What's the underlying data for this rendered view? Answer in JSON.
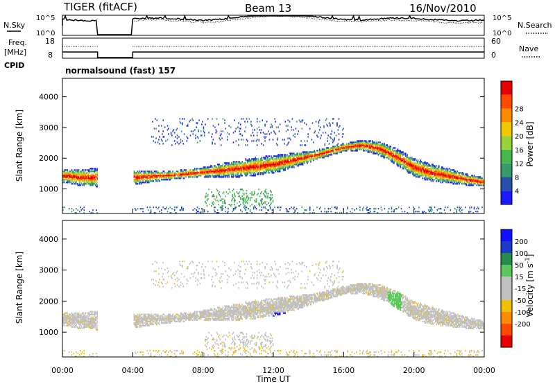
{
  "header": {
    "station": "TIGER (fitACF)",
    "beam": "Beam 13",
    "date": "16/Nov/2010"
  },
  "noise_panel": {
    "left_label": "N.Sky",
    "right_label": "N.Search",
    "left_ticks": [
      "10^5",
      "10^0"
    ],
    "right_ticks": [
      "10^5",
      "10^0"
    ]
  },
  "freq_panel": {
    "left_label_1": "Freq.",
    "left_label_2": "[MHz]",
    "right_label": "Nave",
    "left_ticks": [
      "18",
      "8"
    ],
    "right_ticks": [
      "60",
      "0"
    ]
  },
  "cpid": {
    "label": "CPID",
    "value": "normalsound (fast) 157"
  },
  "colors": {
    "power_scale": [
      "#1a1aff",
      "#2850a8",
      "#3a9a6a",
      "#44b84a",
      "#9ad23a",
      "#f0c800",
      "#ff8c00",
      "#ff4a00",
      "#e60000"
    ],
    "velocity_scale": [
      "#e60000",
      "#ff4a00",
      "#ff8c00",
      "#f0c000",
      "#c0c0c0",
      "#c0c0c0",
      "#5ac85a",
      "#2a8a4a",
      "#1a3ac8",
      "#1010ff"
    ]
  },
  "chart_data": [
    {
      "type": "heatmap",
      "panel": "power",
      "xlabel": "Time UT",
      "ylabel": "Slant Range [km]",
      "xlim": [
        0,
        24
      ],
      "ylim": [
        200,
        4600
      ],
      "y_ticks": [
        "1000",
        "2000",
        "3000",
        "4000"
      ],
      "x_ticks": [
        "00:00",
        "04:00",
        "08:00",
        "12:00",
        "16:00",
        "20:00",
        "00:00"
      ],
      "data_gap_hours": [
        2.0,
        4.0
      ],
      "colorbar": {
        "label": "Power [dB]",
        "ticks": [
          "4",
          "8",
          "12",
          "16",
          "20",
          "24",
          "28"
        ]
      },
      "main_band_center_km": [
        [
          0.3,
          1400
        ],
        [
          1.0,
          1350
        ],
        [
          2.0,
          1350
        ],
        [
          4.0,
          1350
        ],
        [
          6.0,
          1420
        ],
        [
          8.0,
          1520
        ],
        [
          10.0,
          1640
        ],
        [
          12.0,
          1780
        ],
        [
          14.0,
          2020
        ],
        [
          16.0,
          2330
        ],
        [
          17.0,
          2400
        ],
        [
          18.0,
          2300
        ],
        [
          19.0,
          2020
        ],
        [
          20.0,
          1680
        ],
        [
          21.0,
          1500
        ],
        [
          22.0,
          1400
        ],
        [
          23.0,
          1280
        ],
        [
          24.0,
          1200
        ]
      ]
    },
    {
      "type": "heatmap",
      "panel": "velocity",
      "xlabel": "Time UT",
      "ylabel": "Slant Range [km]",
      "xlim": [
        0,
        24
      ],
      "ylim": [
        200,
        4600
      ],
      "y_ticks": [
        "1000",
        "2000",
        "3000",
        "4000"
      ],
      "x_ticks": [
        "00:00",
        "04:00",
        "08:00",
        "12:00",
        "16:00",
        "20:00",
        "00:00"
      ],
      "data_gap_hours": [
        2.0,
        4.0
      ],
      "colorbar": {
        "label": "Velocity [m s^-1]",
        "ticks": [
          "200",
          "100",
          "50",
          "15",
          "-15",
          "-50",
          "-100",
          "-200"
        ]
      }
    }
  ]
}
